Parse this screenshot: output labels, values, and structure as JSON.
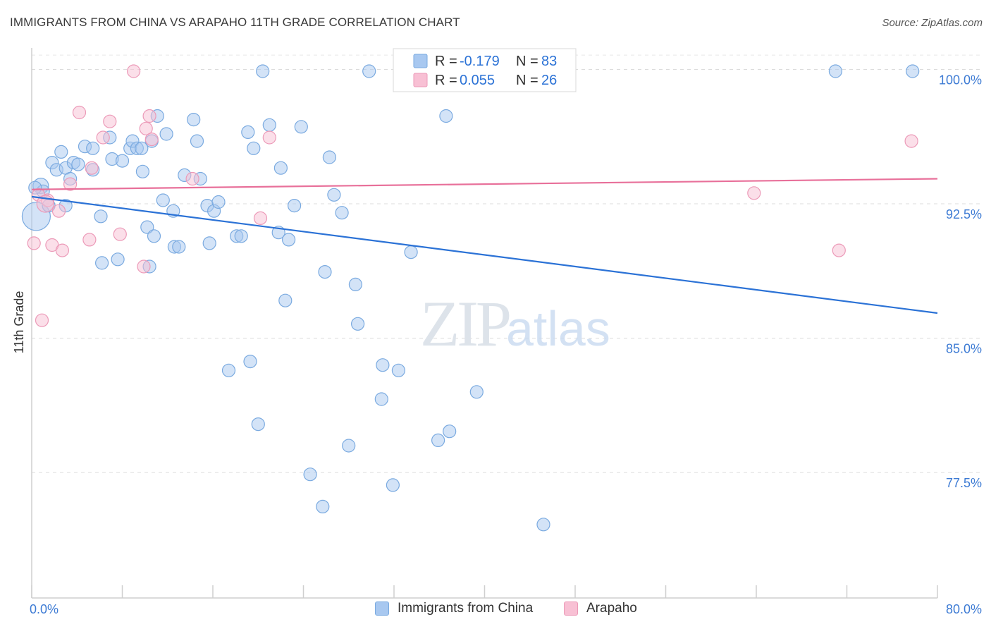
{
  "title": "IMMIGRANTS FROM CHINA VS ARAPAHO 11TH GRADE CORRELATION CHART",
  "source": "Source: ZipAtlas.com",
  "watermark": {
    "zip": "ZIP",
    "atlas": "atlas"
  },
  "chart_data": {
    "type": "scatter",
    "xlabel": "",
    "ylabel": "11th Grade",
    "xlim": [
      0,
      80
    ],
    "ylim": [
      70.5,
      101.2
    ],
    "x_tick_labels": [
      "0.0%",
      "80.0%"
    ],
    "y_ticks": [
      77.5,
      85.0,
      92.5,
      100.0
    ],
    "y_tick_labels": [
      "77.5%",
      "85.0%",
      "92.5%",
      "100.0%"
    ],
    "grid": "horizontal dashed",
    "legend_position": "top-center",
    "series": [
      {
        "name": "Immigrants from China",
        "color": "#a8c8f0",
        "stroke": "#7aaae0",
        "line_color": "#2b72d6",
        "R": "-0.179",
        "N": "83",
        "trend": {
          "x": [
            0,
            80
          ],
          "y": [
            92.9,
            86.4
          ]
        },
        "points": [
          [
            0.4,
            91.8
          ],
          [
            0.8,
            93.5
          ],
          [
            1.0,
            93.2
          ],
          [
            1.5,
            92.4
          ],
          [
            1.8,
            94.8
          ],
          [
            2.2,
            94.4
          ],
          [
            2.6,
            95.4
          ],
          [
            3.0,
            94.5
          ],
          [
            3.4,
            93.9
          ],
          [
            3.7,
            94.8
          ],
          [
            4.1,
            94.7
          ],
          [
            4.7,
            95.7
          ],
          [
            5.4,
            94.4
          ],
          [
            6.1,
            91.8
          ],
          [
            6.2,
            89.2
          ],
          [
            6.9,
            96.2
          ],
          [
            7.1,
            95.0
          ],
          [
            7.6,
            89.4
          ],
          [
            8.0,
            94.9
          ],
          [
            8.7,
            95.6
          ],
          [
            8.9,
            96.0
          ],
          [
            9.3,
            95.6
          ],
          [
            9.7,
            95.6
          ],
          [
            9.8,
            94.3
          ],
          [
            10.2,
            91.2
          ],
          [
            10.4,
            89.0
          ],
          [
            10.6,
            96.0
          ],
          [
            10.8,
            90.7
          ],
          [
            11.1,
            97.4
          ],
          [
            11.6,
            92.7
          ],
          [
            11.9,
            96.4
          ],
          [
            12.5,
            92.1
          ],
          [
            12.6,
            90.1
          ],
          [
            13.0,
            90.1
          ],
          [
            13.5,
            94.1
          ],
          [
            14.3,
            97.2
          ],
          [
            14.6,
            96.0
          ],
          [
            14.9,
            93.9
          ],
          [
            15.5,
            92.4
          ],
          [
            15.7,
            90.3
          ],
          [
            16.1,
            92.1
          ],
          [
            16.5,
            92.6
          ],
          [
            17.4,
            83.2
          ],
          [
            18.1,
            90.7
          ],
          [
            18.5,
            90.7
          ],
          [
            19.1,
            96.5
          ],
          [
            19.3,
            83.7
          ],
          [
            19.6,
            95.6
          ],
          [
            20.0,
            80.2
          ],
          [
            20.4,
            99.9
          ],
          [
            21.0,
            96.9
          ],
          [
            21.8,
            90.9
          ],
          [
            22.0,
            94.5
          ],
          [
            22.4,
            87.1
          ],
          [
            22.7,
            90.5
          ],
          [
            23.2,
            92.4
          ],
          [
            23.8,
            96.8
          ],
          [
            24.6,
            77.4
          ],
          [
            25.7,
            75.6
          ],
          [
            25.9,
            88.7
          ],
          [
            26.3,
            95.1
          ],
          [
            26.7,
            93.0
          ],
          [
            27.4,
            92.0
          ],
          [
            28.0,
            79.0
          ],
          [
            28.6,
            88.0
          ],
          [
            28.8,
            85.8
          ],
          [
            29.8,
            99.9
          ],
          [
            30.9,
            81.6
          ],
          [
            31.0,
            83.5
          ],
          [
            31.9,
            76.8
          ],
          [
            32.4,
            83.2
          ],
          [
            33.1,
            99.9
          ],
          [
            33.5,
            89.8
          ],
          [
            35.9,
            79.3
          ],
          [
            36.6,
            97.4
          ],
          [
            36.9,
            79.8
          ],
          [
            39.3,
            82.0
          ],
          [
            45.2,
            74.6
          ],
          [
            71.0,
            99.9
          ],
          [
            77.8,
            99.9
          ],
          [
            0.3,
            93.4
          ],
          [
            3.0,
            92.4
          ],
          [
            5.4,
            95.6
          ]
        ]
      },
      {
        "name": "Arapaho",
        "color": "#f8c0d4",
        "stroke": "#ec9ab8",
        "line_color": "#e8709a",
        "R": "0.055",
        "N": "26",
        "trend": {
          "x": [
            0,
            80
          ],
          "y": [
            93.3,
            93.9
          ]
        },
        "points": [
          [
            0.2,
            90.3
          ],
          [
            0.6,
            93.0
          ],
          [
            0.9,
            86.0
          ],
          [
            1.4,
            92.7
          ],
          [
            1.8,
            90.2
          ],
          [
            2.4,
            92.1
          ],
          [
            2.7,
            89.9
          ],
          [
            3.4,
            93.6
          ],
          [
            4.2,
            97.6
          ],
          [
            5.1,
            90.5
          ],
          [
            5.3,
            94.5
          ],
          [
            6.3,
            96.2
          ],
          [
            6.9,
            97.1
          ],
          [
            7.8,
            90.8
          ],
          [
            9.0,
            99.9
          ],
          [
            9.9,
            89.0
          ],
          [
            10.1,
            96.7
          ],
          [
            10.4,
            97.4
          ],
          [
            10.6,
            96.1
          ],
          [
            14.2,
            93.9
          ],
          [
            20.2,
            91.7
          ],
          [
            21.0,
            96.2
          ],
          [
            63.8,
            93.1
          ],
          [
            71.3,
            89.9
          ],
          [
            77.7,
            96.0
          ],
          [
            1.2,
            92.5
          ]
        ]
      }
    ]
  }
}
